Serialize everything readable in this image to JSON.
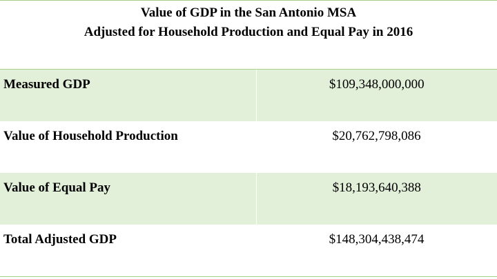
{
  "title": {
    "line1": "Value of GDP in the San Antonio MSA",
    "line2": "Adjusted for Household Production and Equal Pay in 2016"
  },
  "rows": [
    {
      "label": "Measured GDP",
      "value": "$109,348,000,000",
      "shaded": true
    },
    {
      "label": "Value of Household Production",
      "value": "$20,762,798,086",
      "shaded": false
    },
    {
      "label": "Value of Equal Pay",
      "value": "$18,193,640,388",
      "shaded": true
    },
    {
      "label": "Total Adjusted GDP",
      "value": "$148,304,438,474",
      "shaded": false
    }
  ],
  "colors": {
    "shade": "#e2efd9",
    "border": "#a8d08d"
  }
}
